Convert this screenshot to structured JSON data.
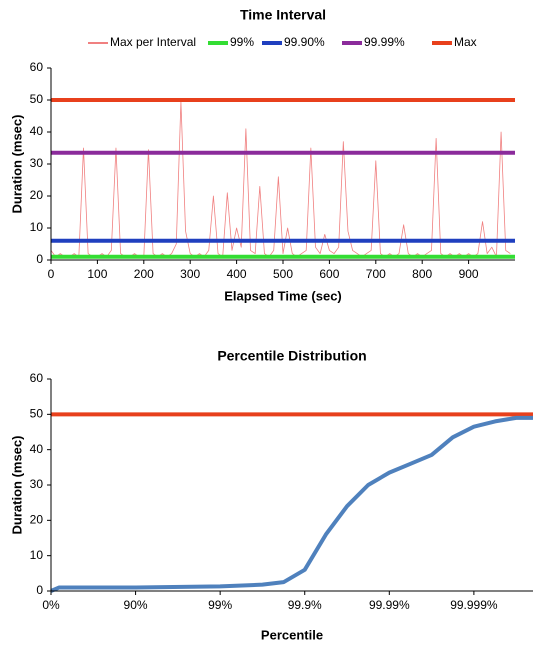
{
  "chart_data": [
    {
      "type": "line",
      "title": "Time Interval",
      "xlabel": "Elapsed Time (sec)",
      "ylabel": "Duration (msec)",
      "legend": "top",
      "xlim": [
        0,
        1000
      ],
      "xticks": [
        0,
        100,
        200,
        300,
        400,
        500,
        600,
        700,
        800,
        900
      ],
      "ylim": [
        0,
        60
      ],
      "yticks": [
        0,
        10,
        20,
        30,
        40,
        50,
        60
      ],
      "series": [
        {
          "name": "Max per Interval",
          "color": "#f08080",
          "line_width": 0.8,
          "x": [
            0,
            10,
            20,
            30,
            40,
            50,
            60,
            70,
            80,
            90,
            100,
            110,
            120,
            130,
            140,
            150,
            160,
            170,
            180,
            190,
            200,
            210,
            220,
            230,
            240,
            250,
            260,
            270,
            280,
            290,
            300,
            310,
            320,
            330,
            340,
            350,
            360,
            370,
            380,
            390,
            400,
            410,
            420,
            430,
            440,
            450,
            460,
            470,
            480,
            490,
            500,
            510,
            520,
            530,
            540,
            550,
            560,
            570,
            580,
            590,
            600,
            610,
            620,
            630,
            640,
            650,
            660,
            670,
            680,
            690,
            700,
            710,
            720,
            730,
            740,
            750,
            760,
            770,
            780,
            790,
            800,
            810,
            820,
            830,
            840,
            850,
            860,
            870,
            880,
            890,
            900,
            910,
            920,
            930,
            940,
            950,
            960,
            970,
            980,
            990
          ],
          "values": [
            3,
            1,
            2,
            1,
            1,
            2,
            1,
            35,
            2,
            1,
            1,
            2,
            1,
            3,
            35,
            2,
            1,
            1,
            2,
            1,
            1,
            34.5,
            2,
            1,
            2,
            1,
            2,
            5,
            49.5,
            9,
            2,
            1,
            2,
            1,
            3,
            20,
            2,
            1,
            21,
            3,
            10,
            4,
            41,
            3,
            2,
            23,
            2,
            1,
            3,
            26,
            2,
            10,
            2,
            1,
            2,
            3,
            35,
            4,
            2,
            8,
            3,
            2,
            4,
            37,
            9,
            3,
            2,
            1,
            2,
            3,
            31,
            2,
            1,
            2,
            1,
            2,
            11,
            2,
            1,
            2,
            1,
            2,
            3,
            38,
            2,
            1,
            2,
            1,
            2,
            1,
            2,
            1,
            2,
            12,
            2,
            4,
            1,
            40,
            3,
            2
          ]
        },
        {
          "name": "99%",
          "color": "#33dd33",
          "line_width": 4,
          "x": [
            0,
            1000
          ],
          "values": [
            1,
            1
          ]
        },
        {
          "name": "99.90%",
          "color": "#1f3fbf",
          "line_width": 4,
          "x": [
            0,
            1000
          ],
          "values": [
            6,
            6
          ]
        },
        {
          "name": "99.99%",
          "color": "#8b2b9b",
          "line_width": 4,
          "x": [
            0,
            1000
          ],
          "values": [
            33.5,
            33.5
          ]
        },
        {
          "name": "Max",
          "color": "#e8401c",
          "line_width": 4,
          "x": [
            0,
            1000
          ],
          "values": [
            50,
            50
          ]
        }
      ]
    },
    {
      "type": "line",
      "title": "Percentile Distribution",
      "xlabel": "Percentile",
      "ylabel": "Duration (msec)",
      "xscale": "percentile-log",
      "xlim": [
        0,
        99.9998
      ],
      "xticks": [
        {
          "value": 0,
          "label": "0%"
        },
        {
          "value": 90,
          "label": "90%"
        },
        {
          "value": 99,
          "label": "99%"
        },
        {
          "value": 99.9,
          "label": "99.9%"
        },
        {
          "value": 99.99,
          "label": "99.99%"
        },
        {
          "value": 99.999,
          "label": "99.999%"
        }
      ],
      "ylim": [
        0,
        60
      ],
      "yticks": [
        0,
        10,
        20,
        30,
        40,
        50,
        60
      ],
      "series": [
        {
          "color": "#e8401c",
          "line_width": 4,
          "x": [
            0,
            99.9998
          ],
          "values": [
            50,
            50
          ]
        },
        {
          "color": "#4f81bd",
          "line_width": 4,
          "x": [
            0,
            20,
            90,
            99,
            99.684,
            99.822,
            99.9,
            99.9438,
            99.9684,
            99.98222,
            99.99,
            99.99438,
            99.99684,
            99.998222,
            99.999,
            99.999438,
            99.999684,
            99.9998
          ],
          "values": [
            0,
            1,
            1,
            1.3,
            1.8,
            2.5,
            6,
            16,
            24,
            30,
            33.5,
            36,
            38.5,
            43.5,
            46.5,
            48,
            49,
            49
          ]
        }
      ]
    }
  ]
}
